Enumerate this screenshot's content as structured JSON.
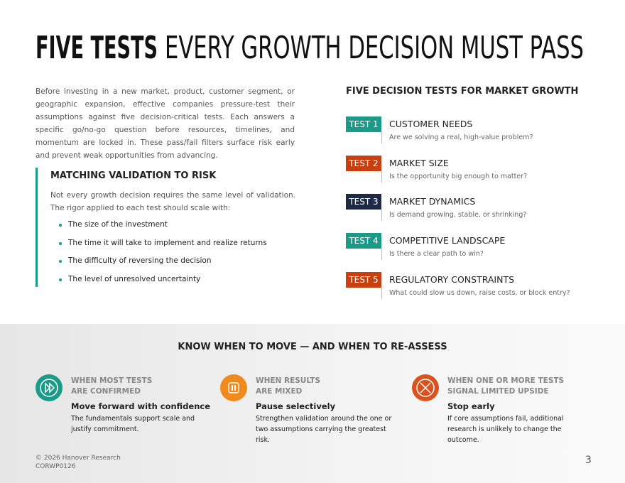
{
  "header": {
    "title_bold": "FIVE TESTS",
    "title_rest": "EVERY GROWTH DECISION MUST PASS"
  },
  "intro": "Before investing in a new market, product, customer segment, or geographic expansion, effective companies pressure-test their assumptions against five decision-critical tests. Each answers a specific go/no-go question before resources, timelines, and momentum are locked in. These pass/fail filters surface risk early and prevent weak opportunities from advancing.",
  "risk": {
    "heading": "MATCHING VALIDATION TO RISK",
    "text": "Not every growth decision requires the same level of validation. The rigor applied to each test should scale with:",
    "bullets": [
      "The size of the investment",
      "The time it will take to implement and realize returns",
      "The difficulty of reversing the decision",
      "The level of unresolved uncertainty"
    ]
  },
  "tests": {
    "heading": "FIVE DECISION TESTS FOR MARKET GROWTH",
    "items": [
      {
        "label": "TEST 1",
        "title": "CUSTOMER NEEDS",
        "question": "Are we solving a real, high-value problem?"
      },
      {
        "label": "TEST 2",
        "title": "MARKET SIZE",
        "question": "Is the opportunity big enough to matter?"
      },
      {
        "label": "TEST 3",
        "title": "MARKET DYNAMICS",
        "question": "Is demand growing, stable, or shrinking?"
      },
      {
        "label": "TEST 4",
        "title": "COMPETITIVE LANDSCAPE",
        "question": "Is there a clear path to win?"
      },
      {
        "label": "TEST 5",
        "title": "REGULATORY CONSTRAINTS",
        "question": "What could slow us down, raise costs, or block entry?"
      }
    ]
  },
  "bottom": {
    "heading": "KNOW WHEN TO MOVE — AND WHEN TO RE-ASSESS",
    "columns": [
      {
        "label_lines": [
          "WHEN MOST TESTS",
          "ARE CONFIRMED"
        ],
        "action": "Move forward with confidence",
        "text": "The fundamentals support scale and justify commitment."
      },
      {
        "label_lines": [
          "WHEN RESULTS",
          "ARE MIXED"
        ],
        "action": "Pause selectively",
        "text": "Strengthen validation around the one or two assumptions carrying the greatest risk."
      },
      {
        "label_lines": [
          "WHEN ONE OR MORE TESTS",
          "SIGNAL LIMITED UPSIDE"
        ],
        "action": "Stop early",
        "text": "If core assumptions fail, additional research is unlikely to change the outcome."
      }
    ]
  },
  "footer": {
    "copyright": "© 2026 Hanover Research",
    "code": "CORWP0126",
    "page": "3"
  }
}
